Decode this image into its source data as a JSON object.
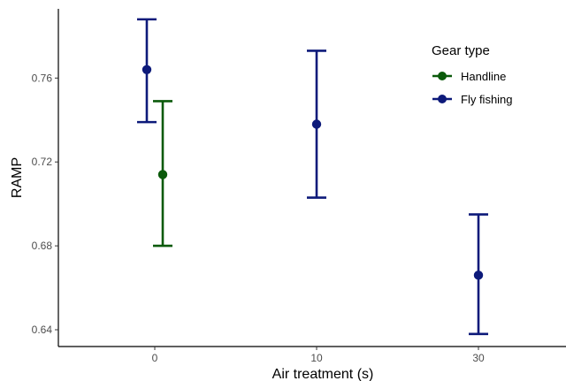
{
  "chart_data": {
    "type": "scatter",
    "xlabel": "Air treatment (s)",
    "ylabel": "RAMP",
    "categories": [
      "0",
      "10",
      "30"
    ],
    "y_ticks": [
      "0.64",
      "0.68",
      "0.72",
      "0.76"
    ],
    "ylim": [
      0.632,
      0.793
    ],
    "grid": false,
    "legend": {
      "title": "Gear type",
      "position": "right"
    },
    "series": [
      {
        "name": "Handline",
        "color": "#0b5a0b",
        "points": [
          {
            "x": "0",
            "y": 0.714,
            "ymin": 0.68,
            "ymax": 0.749
          }
        ]
      },
      {
        "name": "Fly fishing",
        "color": "#0d1a7a",
        "points": [
          {
            "x": "0",
            "y": 0.764,
            "ymin": 0.739,
            "ymax": 0.788
          },
          {
            "x": "10",
            "y": 0.738,
            "ymin": 0.703,
            "ymax": 0.773
          },
          {
            "x": "30",
            "y": 0.666,
            "ymin": 0.638,
            "ymax": 0.695
          }
        ]
      }
    ]
  }
}
